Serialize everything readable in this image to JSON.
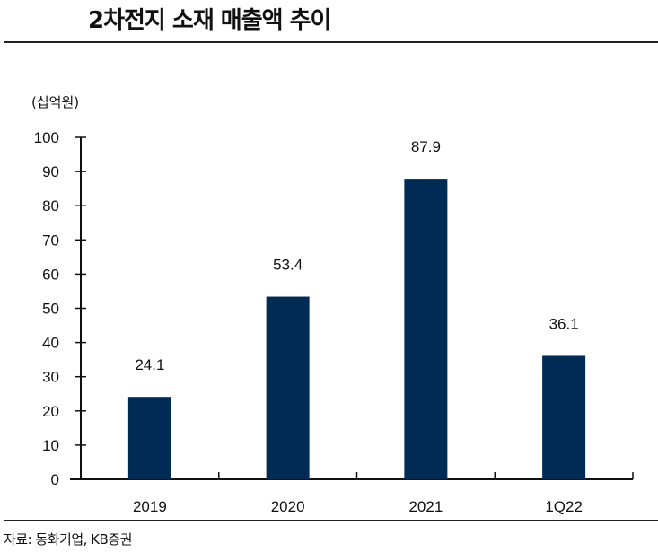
{
  "title": "2차전지 소재 매출액 추이",
  "source": "자료: 동화기업, KB증권",
  "colors": {
    "bar": "#002B55",
    "axis": "#111111"
  },
  "chart_data": {
    "type": "bar",
    "title": "2차전지 소재 매출액 추이",
    "ylabel": "(십억원)",
    "xlabel": "",
    "categories": [
      "2019",
      "2020",
      "2021",
      "1Q22"
    ],
    "values": [
      24.1,
      53.4,
      87.9,
      36.1
    ],
    "data_labels": [
      "24.1",
      "53.4",
      "87.9",
      "36.1"
    ],
    "ylim": [
      0,
      100
    ],
    "yticks": [
      0,
      10,
      20,
      30,
      40,
      50,
      60,
      70,
      80,
      90,
      100
    ],
    "grid": false,
    "legend": "none"
  }
}
